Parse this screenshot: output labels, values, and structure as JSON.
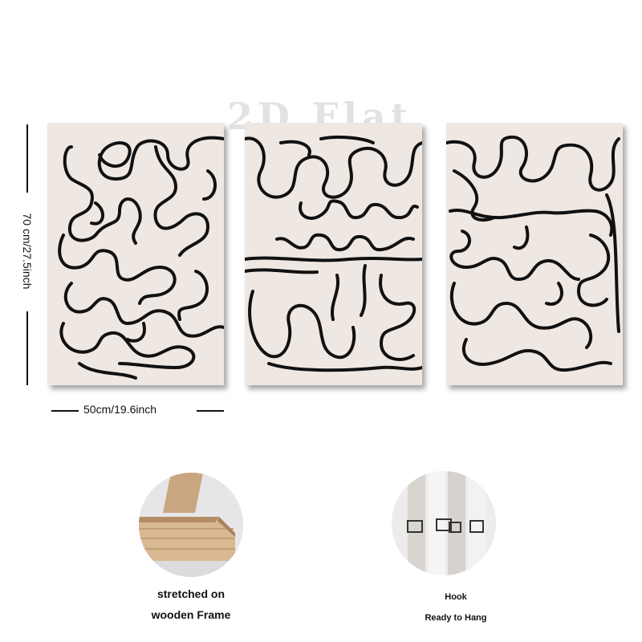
{
  "watermark": "2D Flat",
  "dimensions": {
    "height_label": "70 cm/27.5inch",
    "width_label": "50cm/19.6inch"
  },
  "panels": [
    "left-panel",
    "center-panel",
    "right-panel"
  ],
  "features": [
    {
      "icon": "wooden-frame-corner-icon",
      "lines": [
        "stretched on",
        "wooden Frame"
      ]
    },
    {
      "icon": "hook-icon",
      "lines": [
        "Hook",
        "Ready to Hang"
      ]
    }
  ],
  "colors": {
    "canvas": "#efe8e2",
    "line": "#111111",
    "wood": "#d9b894"
  }
}
